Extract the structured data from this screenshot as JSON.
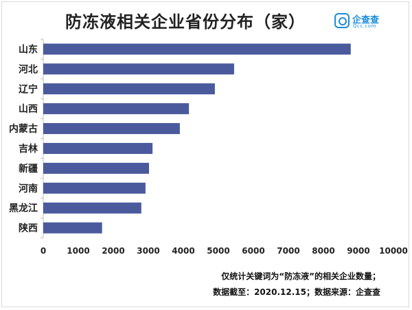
{
  "header": {
    "title": "防冻液相关企业省份分布（家）"
  },
  "logo": {
    "name": "企查查",
    "domain": "Qcc.com",
    "color": "#1a8cd8"
  },
  "chart_data": {
    "type": "bar",
    "orientation": "horizontal",
    "title": "防冻液相关企业省份分布（家）",
    "categories": [
      "山东",
      "河北",
      "辽宁",
      "山西",
      "内蒙古",
      "吉林",
      "新疆",
      "河南",
      "黑龙江",
      "陕西"
    ],
    "values": [
      8780,
      5450,
      4900,
      4160,
      3900,
      3120,
      3020,
      2920,
      2800,
      1680
    ],
    "xlim": [
      0,
      10000
    ],
    "xticks": [
      0,
      1000,
      2000,
      3000,
      4000,
      5000,
      6000,
      7000,
      8000,
      9000,
      10000
    ],
    "grid": false,
    "bar_color": "#4a5a9c"
  },
  "notes": {
    "line1": "仅统计关键词为“防冻液”的相关企业数量；",
    "line2": "数据截至：2020.12.15；数据来源：企查查"
  }
}
